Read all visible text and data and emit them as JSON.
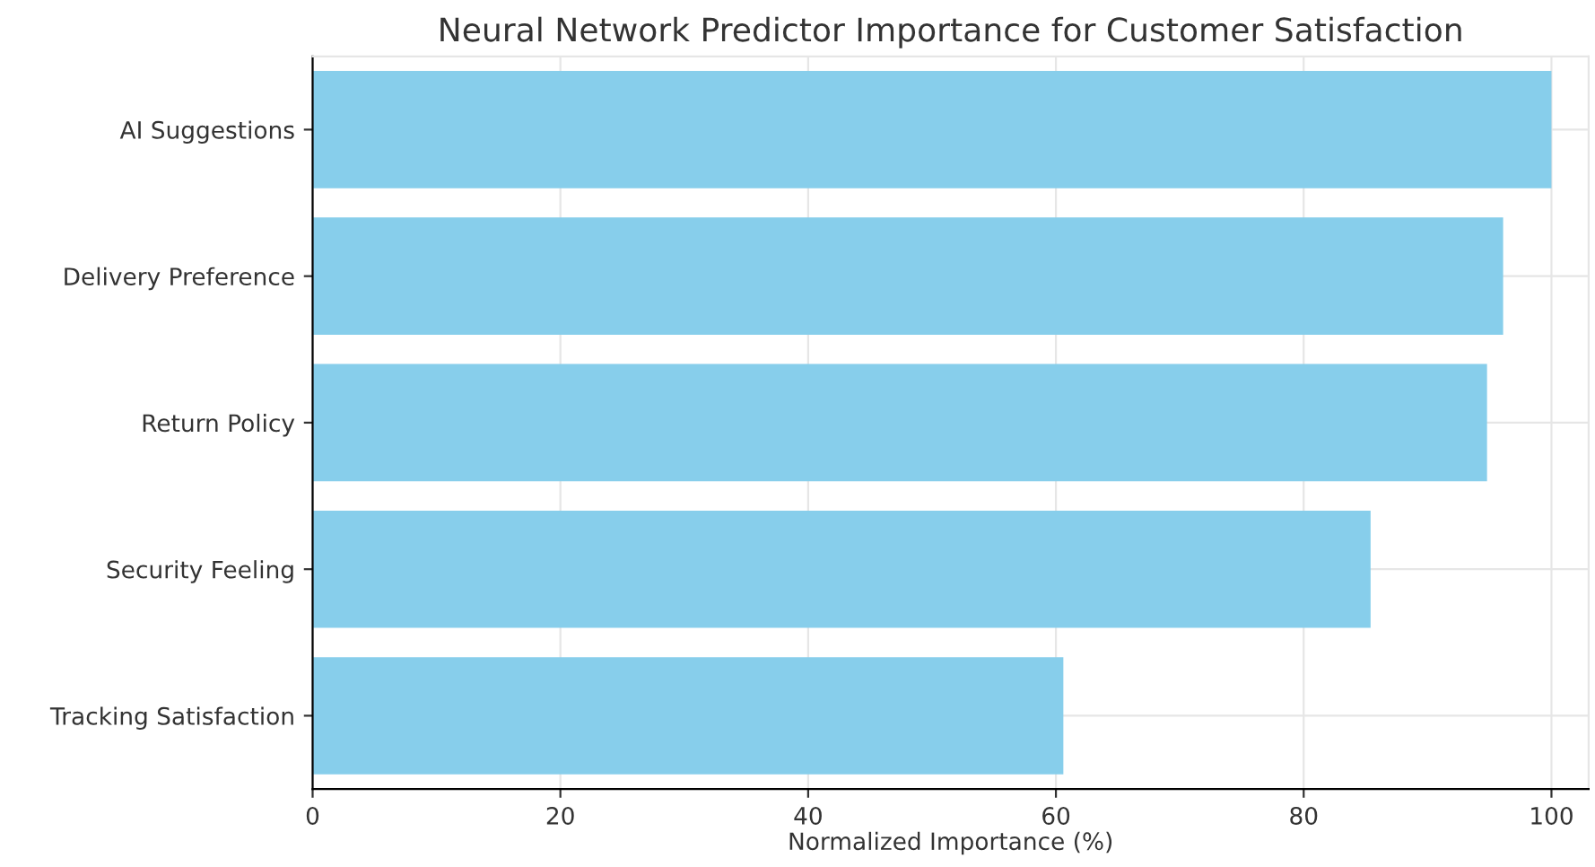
{
  "chart_data": {
    "type": "bar",
    "orientation": "horizontal",
    "title": "Neural Network Predictor Importance for Customer Satisfaction",
    "xlabel": "Normalized Importance (%)",
    "categories": [
      "AI Suggestions",
      "Delivery Preference",
      "Return Policy",
      "Security Feeling",
      "Tracking Satisfaction"
    ],
    "values": [
      100,
      96.1,
      94.8,
      85.4,
      60.6
    ],
    "color": "#87ceeb",
    "xlim": [
      0,
      103
    ],
    "xticks": [
      0,
      20,
      40,
      60,
      80,
      100
    ],
    "grid": true
  }
}
